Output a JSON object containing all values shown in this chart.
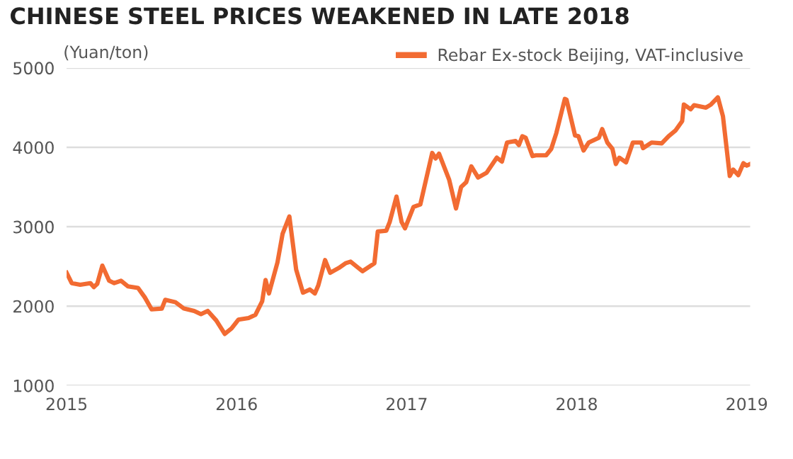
{
  "chart_data": {
    "type": "line",
    "title": "CHINESE STEEL PRICES WEAKENED IN LATE 2018",
    "ylabel": "(Yuan/ton)",
    "x": [
      2015.0,
      2015.03,
      2015.08,
      2015.14,
      2015.16,
      2015.18,
      2015.21,
      2015.25,
      2015.28,
      2015.32,
      2015.36,
      2015.42,
      2015.46,
      2015.5,
      2015.56,
      2015.58,
      2015.64,
      2015.69,
      2015.75,
      2015.79,
      2015.83,
      2015.88,
      2015.93,
      2015.97,
      2016.01,
      2016.07,
      2016.11,
      2016.15,
      2016.17,
      2016.19,
      2016.24,
      2016.27,
      2016.31,
      2016.35,
      2016.39,
      2016.43,
      2016.46,
      2016.48,
      2016.52,
      2016.55,
      2016.6,
      2016.64,
      2016.67,
      2016.74,
      2016.81,
      2016.83,
      2016.88,
      2016.9,
      2016.94,
      2016.97,
      2016.99,
      2017.04,
      2017.08,
      2017.15,
      2017.17,
      2017.19,
      2017.25,
      2017.29,
      2017.32,
      2017.35,
      2017.38,
      2017.42,
      2017.47,
      2017.53,
      2017.56,
      2017.59,
      2017.64,
      2017.66,
      2017.68,
      2017.7,
      2017.74,
      2017.76,
      2017.82,
      2017.85,
      2017.88,
      2017.93,
      2017.94,
      2017.99,
      2018.01,
      2018.04,
      2018.07,
      2018.11,
      2018.13,
      2018.15,
      2018.18,
      2018.21,
      2018.23,
      2018.25,
      2018.29,
      2018.33,
      2018.38,
      2018.39,
      2018.44,
      2018.5,
      2018.54,
      2018.58,
      2018.62,
      2018.63,
      2018.67,
      2018.69,
      2018.76,
      2018.79,
      2018.83,
      2018.86,
      2018.9,
      2018.92,
      2018.95,
      2018.98,
      2019.0,
      2019.02
    ],
    "series": [
      {
        "name": "Rebar Ex-stock Beijing, VAT-inclusive",
        "color": "#f26b32",
        "values": [
          2420,
          2290,
          2270,
          2290,
          2240,
          2280,
          2510,
          2320,
          2290,
          2320,
          2250,
          2230,
          2110,
          1960,
          1970,
          2080,
          2050,
          1970,
          1940,
          1900,
          1940,
          1820,
          1650,
          1720,
          1830,
          1850,
          1890,
          2060,
          2330,
          2160,
          2550,
          2910,
          3130,
          2460,
          2170,
          2210,
          2160,
          2260,
          2580,
          2420,
          2480,
          2540,
          2560,
          2440,
          2540,
          2940,
          2950,
          3060,
          3380,
          3060,
          2980,
          3250,
          3280,
          3930,
          3860,
          3920,
          3590,
          3230,
          3500,
          3560,
          3760,
          3620,
          3680,
          3870,
          3820,
          4060,
          4080,
          4030,
          4140,
          4120,
          3890,
          3900,
          3900,
          3980,
          4180,
          4610,
          4600,
          4150,
          4140,
          3960,
          4060,
          4100,
          4120,
          4230,
          4060,
          3980,
          3790,
          3870,
          3810,
          4060,
          4060,
          3990,
          4060,
          4050,
          4140,
          4210,
          4330,
          4540,
          4480,
          4530,
          4500,
          4540,
          4630,
          4390,
          3640,
          3720,
          3650,
          3800,
          3770,
          3790
        ]
      }
    ],
    "xlim": [
      2015,
      2019.02
    ],
    "xticks": [
      2015,
      2016,
      2017,
      2018,
      2019
    ],
    "ylim": [
      1000,
      5000
    ],
    "yticks": [
      1000,
      2000,
      3000,
      4000,
      5000
    ],
    "grid": "y",
    "legend": "top right",
    "marker": "none",
    "line_style": "solid"
  }
}
